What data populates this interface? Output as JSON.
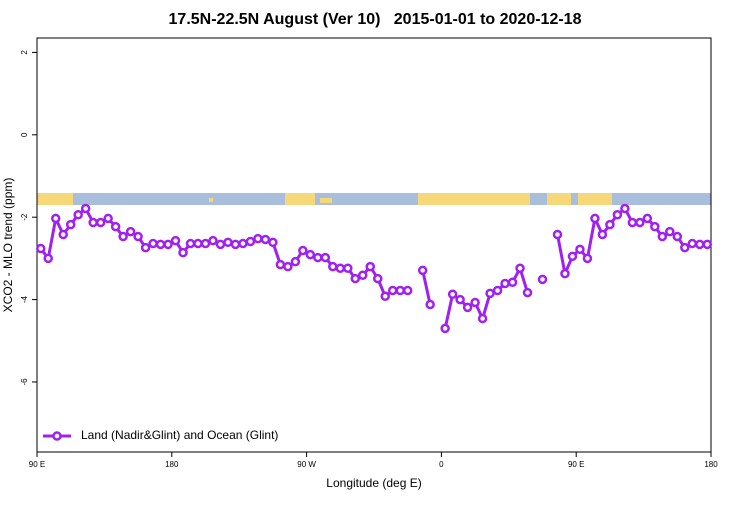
{
  "chart_data": {
    "type": "line",
    "title": "17.5N-22.5N August (Ver 10)   2015-01-01 to 2020-12-18",
    "x_label": "Longitude (deg E)",
    "y_label": "XCO2 - MLO trend (ppm)",
    "x": [
      92.5,
      97.5,
      102.5,
      107.5,
      112.5,
      117.5,
      122.5,
      127.5,
      132.5,
      137.5,
      142.5,
      147.5,
      152.5,
      157.5,
      162.5,
      167.5,
      172.5,
      177.5,
      182.5,
      187.5,
      192.5,
      197.5,
      202.5,
      207.5,
      212.5,
      217.5,
      222.5,
      227.5,
      232.5,
      237.5,
      242.5,
      247.5,
      252.5,
      257.5,
      262.5,
      267.5,
      272.5,
      277.5,
      282.5,
      287.5,
      292.5,
      297.5,
      302.5,
      307.5,
      312.5,
      317.5,
      322.5,
      327.5,
      332.5,
      337.5,
      342.5,
      347.5,
      352.5,
      357.5,
      362.5,
      367.5,
      372.5,
      377.5,
      382.5,
      387.5,
      392.5,
      397.5,
      402.5,
      407.5,
      412.5,
      417.5,
      422.5,
      427.5,
      432.5,
      437.5,
      442.5,
      447.5,
      452.5,
      457.5,
      462.5,
      467.5,
      472.5,
      477.5,
      482.5,
      487.5,
      492.5,
      497.5,
      502.5,
      507.5,
      512.5,
      517.5,
      522.5,
      527.5,
      532.5,
      537.5
    ],
    "series": [
      {
        "name": "Land (Nadir&Glint) and Ocean (Glint)",
        "color": "#a020f0",
        "values": [
          -2.76,
          -3.0,
          -2.03,
          -2.42,
          -2.18,
          -1.94,
          -1.79,
          -2.13,
          -2.13,
          -2.03,
          -2.23,
          -2.47,
          -2.35,
          -2.47,
          -2.74,
          -2.64,
          -2.66,
          -2.66,
          -2.57,
          -2.86,
          -2.64,
          -2.64,
          -2.64,
          -2.57,
          -2.66,
          -2.61,
          -2.66,
          -2.64,
          -2.59,
          -2.52,
          -2.54,
          -2.61,
          -3.15,
          -3.2,
          -3.08,
          -2.81,
          -2.91,
          -2.98,
          -2.98,
          -3.2,
          -3.24,
          -3.24,
          -3.49,
          -3.41,
          -3.2,
          -3.49,
          -3.92,
          -3.78,
          -3.78,
          -3.78,
          null,
          -3.29,
          -4.12,
          null,
          -4.7,
          -3.87,
          -4.0,
          -4.19,
          -4.07,
          -4.46,
          -3.85,
          -3.78,
          -3.61,
          -3.58,
          -3.24,
          -3.83,
          null,
          -3.51,
          null,
          -2.42,
          -3.37,
          -2.95,
          -2.78,
          -3.0,
          -2.03,
          -2.42,
          -2.18,
          -1.94,
          -1.79,
          -2.13,
          -2.13,
          -2.03,
          -2.23,
          -2.47,
          -2.35,
          -2.47,
          -2.74,
          -2.64,
          -2.66,
          -2.66
        ]
      }
    ],
    "xlim": [
      90,
      540
    ],
    "xticks": [
      {
        "value": 90,
        "label": "90 E"
      },
      {
        "value": 180,
        "label": "180"
      },
      {
        "value": 270,
        "label": "90 W"
      },
      {
        "value": 360,
        "label": "0"
      },
      {
        "value": 450,
        "label": "90 E"
      },
      {
        "value": 540,
        "label": "180"
      }
    ],
    "ylim": [
      -7.7,
      2.35
    ],
    "yticks": [
      2,
      0,
      -2,
      -4,
      -6
    ],
    "legend": "bottom-left"
  }
}
